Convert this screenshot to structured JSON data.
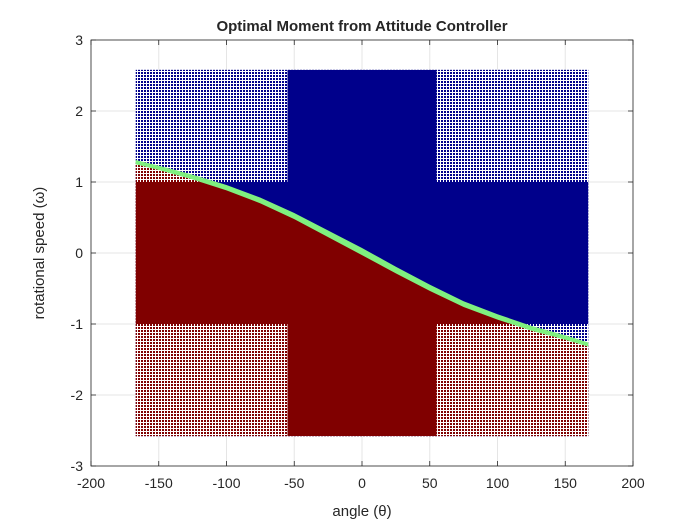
{
  "chart_data": {
    "type": "heatmap",
    "title": "Optimal Moment from Attitude Controller",
    "xlabel": "angle (θ)",
    "ylabel": "rotational speed (ω)",
    "xlim": [
      -200,
      200
    ],
    "ylim": [
      -3,
      3
    ],
    "xticks": [
      -200,
      -150,
      -100,
      -50,
      0,
      50,
      100,
      150,
      200
    ],
    "yticks": [
      -3,
      -2,
      -1,
      0,
      1,
      2,
      3
    ],
    "grid": true,
    "grid_extent": {
      "x": [
        -167,
        167
      ],
      "y": [
        -2.58,
        2.58
      ]
    },
    "dense_mesh_regions": {
      "x": [
        -55,
        55
      ],
      "y": [
        -1.0,
        1.0
      ]
    },
    "switching_curve": {
      "x": [
        -167,
        -150,
        -125,
        -100,
        -75,
        -50,
        -25,
        0,
        25,
        50,
        75,
        100,
        125,
        150,
        167
      ],
      "y": [
        1.28,
        1.2,
        1.07,
        0.92,
        0.74,
        0.52,
        0.27,
        0.02,
        -0.24,
        -0.49,
        -0.72,
        -0.9,
        -1.06,
        -1.19,
        -1.29
      ]
    },
    "boundary_band_width": 0.05,
    "regions": [
      {
        "name": "above switching curve",
        "color": "#00008b"
      },
      {
        "name": "below switching curve",
        "color": "#800000"
      },
      {
        "name": "switching band",
        "color": "#7ff07f"
      }
    ],
    "colors": {
      "axis": "#262626",
      "grid": "#e5e5e5",
      "background": "#ffffff"
    }
  }
}
